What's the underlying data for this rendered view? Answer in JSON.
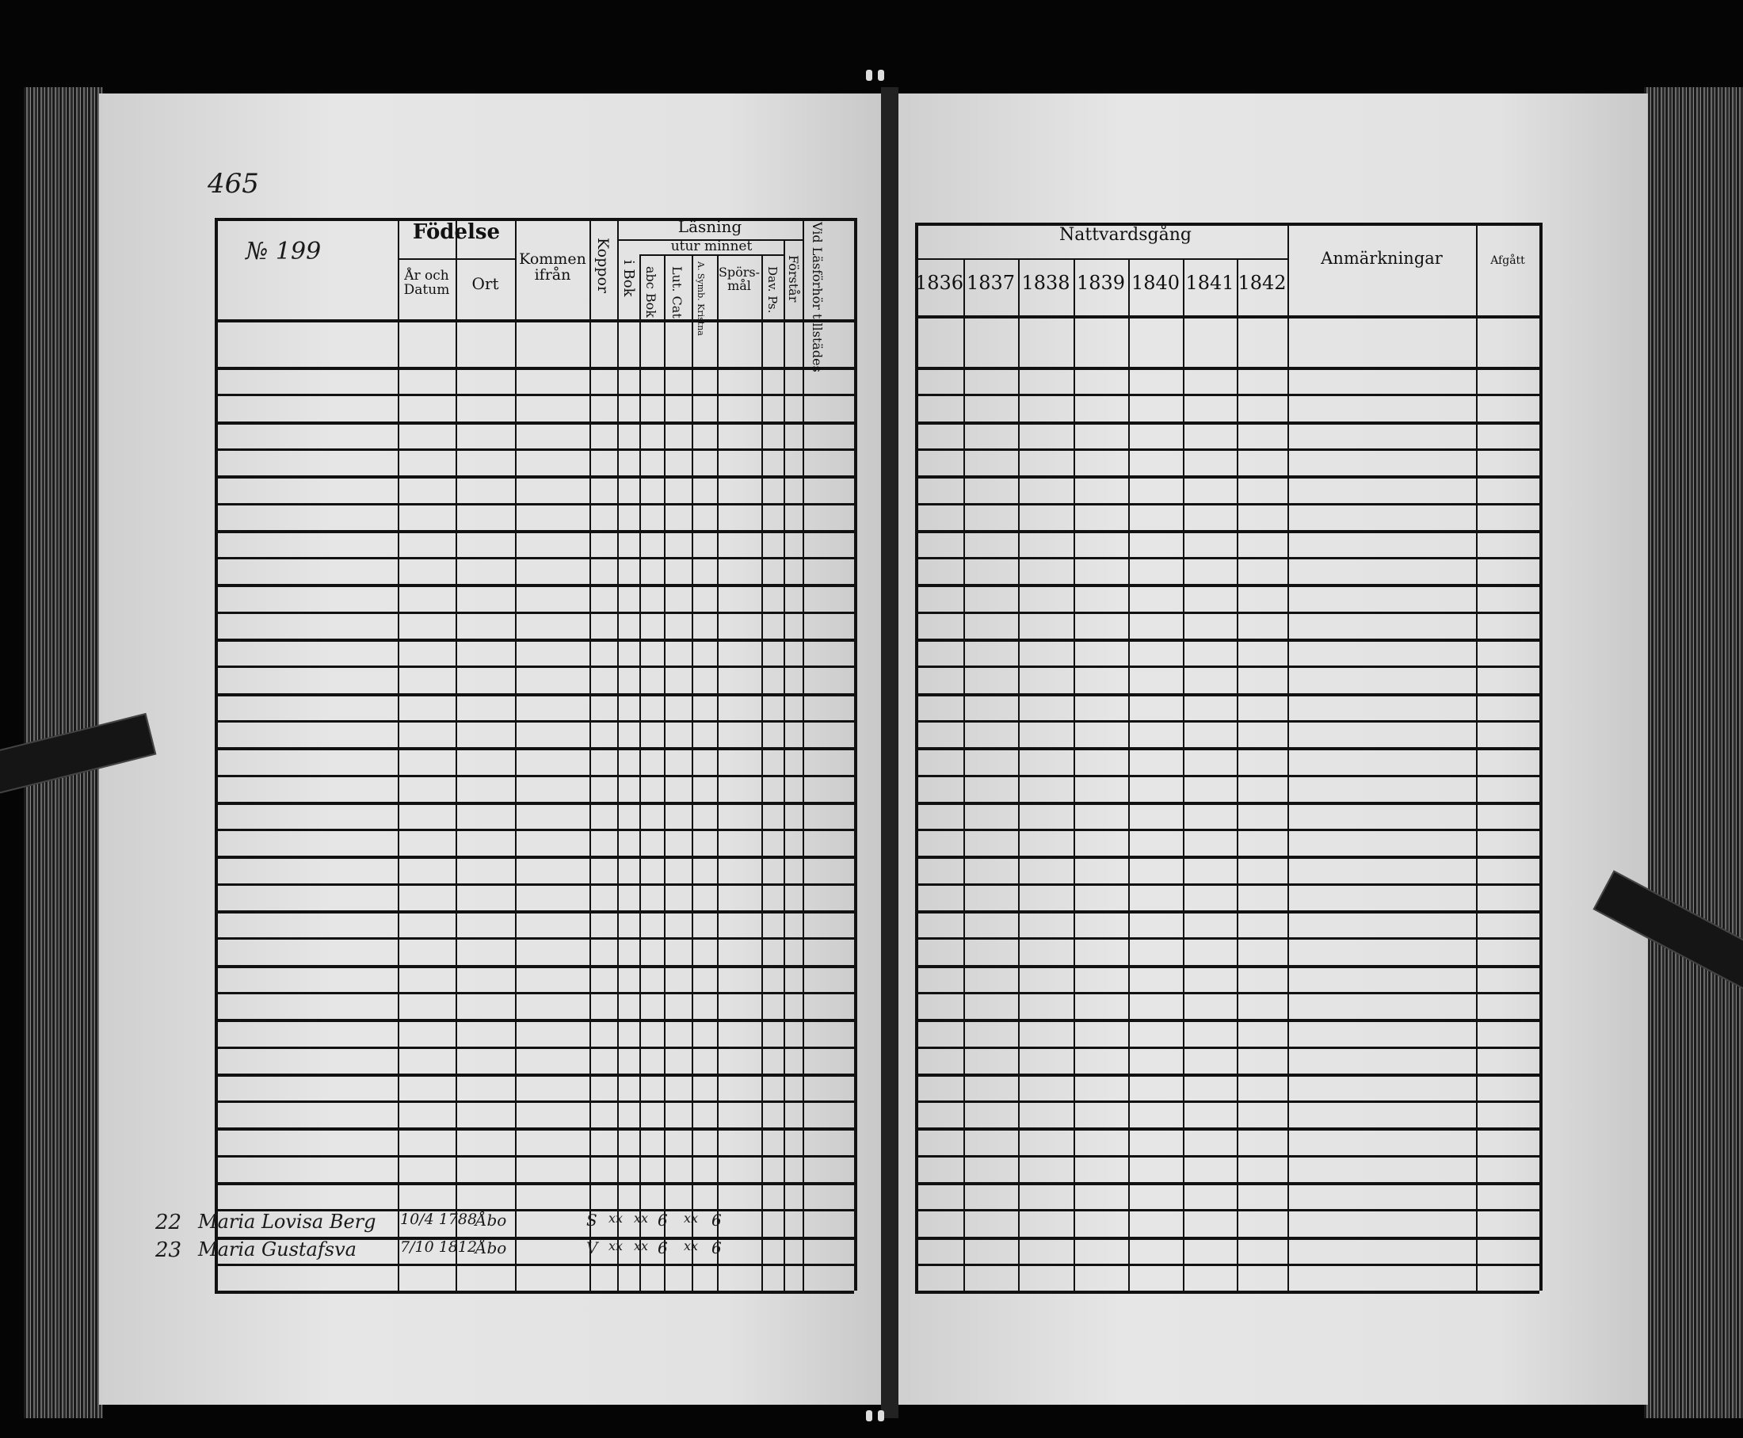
{
  "page_number": "465",
  "left_table": {
    "number_header": "№ 199",
    "fodelse": "Födelse",
    "ar_och_datum": "År och Datum",
    "ort": "Ort",
    "kommen_ifran": "Kommen ifrån",
    "koppor": "Koppor",
    "lasning": "Läsning",
    "i_bok": "i Bok",
    "utur_minnet": "utur minnet",
    "abc_bok": "abc Bok",
    "lut_cat": "Lut. Cat.",
    "a_symb": "A. Symb. Kristna",
    "sporsmal": "Spörs- mål",
    "dav_ps": "Dav. Ps.",
    "forstar": "Förstår",
    "vid_lasforhor": "Vid Läsförhör tillstädes"
  },
  "right_table": {
    "nattvardsgang": "Nattvardsgång",
    "years": [
      "1836",
      "1837",
      "1838",
      "1839",
      "1840",
      "1841",
      "1842"
    ],
    "anmarkningar": "Anmärkningar",
    "afgatt": "Afgått"
  },
  "entries": [
    {
      "no": "22",
      "name": "Maria Lovisa Berg",
      "date": "10/4 1788",
      "ort": "Åbo",
      "koppor": "S",
      "i_bok": "xx",
      "abc_bok": "xx",
      "lut_cat": "6",
      "a_symb": "xx",
      "sporsmal": "6"
    },
    {
      "no": "23",
      "name": "Maria Gustafsva",
      "date": "7/10 1812",
      "ort": "Åbo",
      "koppor": "V",
      "i_bok": "xx",
      "abc_bok": "xx",
      "lut_cat": "6",
      "a_symb": "xx",
      "sporsmal": "6"
    }
  ]
}
